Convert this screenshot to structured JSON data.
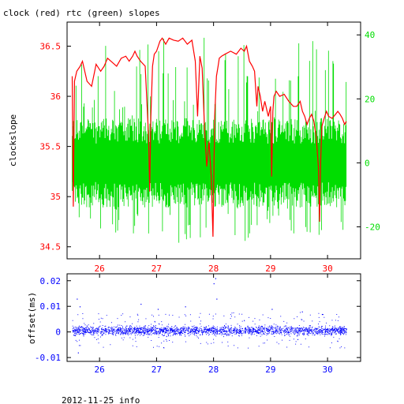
{
  "title": "clock (red) rtc (green) slopes",
  "footer": "2012-11-25 info",
  "colors": {
    "clock": "#ff0000",
    "rtc": "#00dd00",
    "offset": "#0000ff",
    "axis": "#000000"
  },
  "chart_data": [
    {
      "type": "line",
      "title": "clock (red) rtc (green) slopes",
      "ylabel": "clockslope",
      "xlim": [
        25.43,
        30.58
      ],
      "ylim": [
        34.38,
        36.74
      ],
      "y2lim": [
        -30,
        44
      ],
      "x_ticks": [
        26,
        27,
        28,
        29,
        30
      ],
      "x_tick_labels": [
        "26",
        "27",
        "28",
        "29",
        "30"
      ],
      "y_ticks": [
        34.5,
        35,
        35.5,
        36,
        36.5
      ],
      "y_tick_labels": [
        "34.5",
        "35",
        "35.5",
        "36",
        "36.5"
      ],
      "y2_ticks": [
        -20,
        0,
        20,
        40
      ],
      "y2_tick_labels": [
        "-20",
        "0",
        "20",
        "40"
      ],
      "series": [
        {
          "name": "clock",
          "axis": "left",
          "x": [
            25.52,
            25.54,
            25.56,
            25.6,
            25.66,
            25.7,
            25.78,
            25.86,
            25.94,
            26.02,
            26.08,
            26.14,
            26.2,
            26.3,
            26.38,
            26.46,
            26.52,
            26.58,
            26.62,
            26.66,
            26.72,
            26.8,
            26.86,
            26.88,
            26.9,
            26.93,
            26.96,
            27.0,
            27.06,
            27.1,
            27.16,
            27.22,
            27.3,
            27.38,
            27.46,
            27.54,
            27.62,
            27.68,
            27.72,
            27.76,
            27.8,
            27.84,
            27.88,
            27.92,
            27.96,
            27.99,
            28.02,
            28.05,
            28.08,
            28.1,
            28.14,
            28.2,
            28.3,
            28.4,
            28.48,
            28.54,
            28.58,
            28.63,
            28.68,
            28.72,
            28.76,
            28.78,
            28.82,
            28.86,
            28.9,
            28.96,
            29.0,
            29.02,
            29.04,
            29.06,
            29.1,
            29.16,
            29.24,
            29.32,
            29.4,
            29.46,
            29.52,
            29.56,
            29.6,
            29.64,
            29.68,
            29.72,
            29.76,
            29.8,
            29.84,
            29.86,
            29.88,
            29.9,
            29.94,
            29.98,
            30.02,
            30.08,
            30.14,
            30.18,
            30.22,
            30.26,
            30.3,
            30.33
          ],
          "y": [
            36.2,
            34.9,
            36.15,
            36.25,
            36.3,
            36.35,
            36.15,
            36.1,
            36.32,
            36.25,
            36.3,
            36.38,
            36.35,
            36.3,
            36.38,
            36.4,
            36.35,
            36.4,
            36.45,
            36.4,
            36.35,
            36.3,
            35.6,
            35.05,
            35.8,
            36.3,
            36.42,
            36.45,
            36.55,
            36.58,
            36.52,
            36.58,
            36.56,
            36.55,
            36.58,
            36.52,
            36.56,
            36.35,
            35.8,
            36.4,
            36.28,
            35.7,
            35.3,
            35.55,
            35.2,
            34.6,
            35.8,
            36.2,
            36.3,
            36.38,
            36.4,
            36.42,
            36.45,
            36.42,
            36.48,
            36.45,
            36.5,
            36.35,
            36.3,
            36.25,
            35.9,
            36.1,
            36.0,
            35.85,
            35.95,
            35.8,
            35.9,
            35.2,
            35.85,
            36.0,
            36.05,
            36.0,
            36.02,
            35.95,
            35.9,
            35.9,
            35.95,
            35.85,
            35.8,
            35.72,
            35.78,
            35.82,
            35.75,
            35.6,
            35.3,
            34.75,
            35.35,
            35.7,
            35.78,
            35.85,
            35.8,
            35.78,
            35.82,
            35.85,
            35.82,
            35.78,
            35.72,
            35.75
          ]
        }
      ],
      "rtc_band": {
        "axis": "right",
        "x_start": 25.52,
        "x_end": 30.33,
        "typical_low": -10,
        "typical_high": 10,
        "extreme_low": -25,
        "extreme_high": 40
      }
    },
    {
      "type": "scatter",
      "ylabel": "offset(ms)",
      "xlim": [
        25.43,
        30.58
      ],
      "ylim": [
        -0.0115,
        0.0227
      ],
      "x_ticks": [
        26,
        27,
        28,
        29,
        30
      ],
      "x_tick_labels": [
        "26",
        "27",
        "28",
        "29",
        "30"
      ],
      "y_ticks": [
        -0.01,
        0,
        0.01,
        0.02
      ],
      "y_tick_labels": [
        "-0.01",
        "0",
        "0.01",
        "0.02"
      ],
      "series": [
        {
          "name": "offset",
          "x_start": 25.52,
          "x_end": 30.33,
          "typical_low": -0.002,
          "typical_high": 0.003,
          "outliers_x": [
            25.6,
            25.62,
            25.65,
            26.72,
            27.02,
            27.5,
            28.0,
            28.03,
            28.05,
            29.02,
            29.55,
            29.9
          ],
          "outliers_y": [
            0.013,
            -0.008,
            0.01,
            0.011,
            0.009,
            0.01,
            0.019,
            0.021,
            0.013,
            0.009,
            0.008,
            0.007
          ]
        }
      ]
    }
  ]
}
